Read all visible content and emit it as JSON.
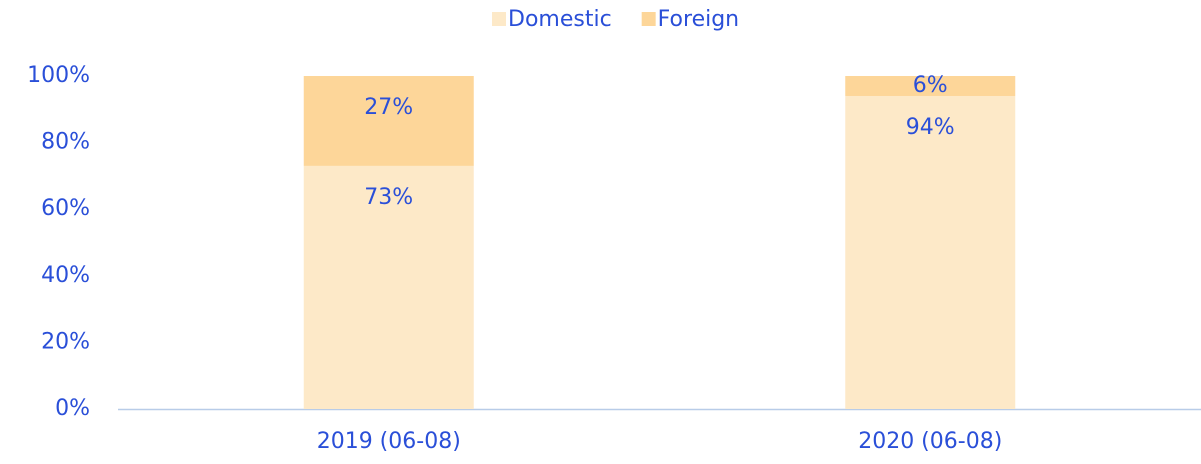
{
  "chart_data": {
    "type": "stacked_bar",
    "categories": [
      "2019 (06-08)",
      "2020 (06-08)"
    ],
    "series": [
      {
        "name": "Domestic",
        "color": "#fde9c8",
        "values": [
          73,
          94
        ],
        "value_labels": [
          "73%",
          "94%"
        ]
      },
      {
        "name": "Foreign",
        "color": "#fdd699",
        "values": [
          27,
          6
        ],
        "value_labels": [
          "27%",
          "6%"
        ]
      }
    ],
    "ylim": [
      0,
      100
    ],
    "yticks": [
      {
        "value": 0,
        "label": "0%"
      },
      {
        "value": 20,
        "label": "20%"
      },
      {
        "value": 40,
        "label": "40%"
      },
      {
        "value": 60,
        "label": "60%"
      },
      {
        "value": 80,
        "label": "80%"
      },
      {
        "value": 100,
        "label": "100%"
      }
    ],
    "legend": "top"
  }
}
